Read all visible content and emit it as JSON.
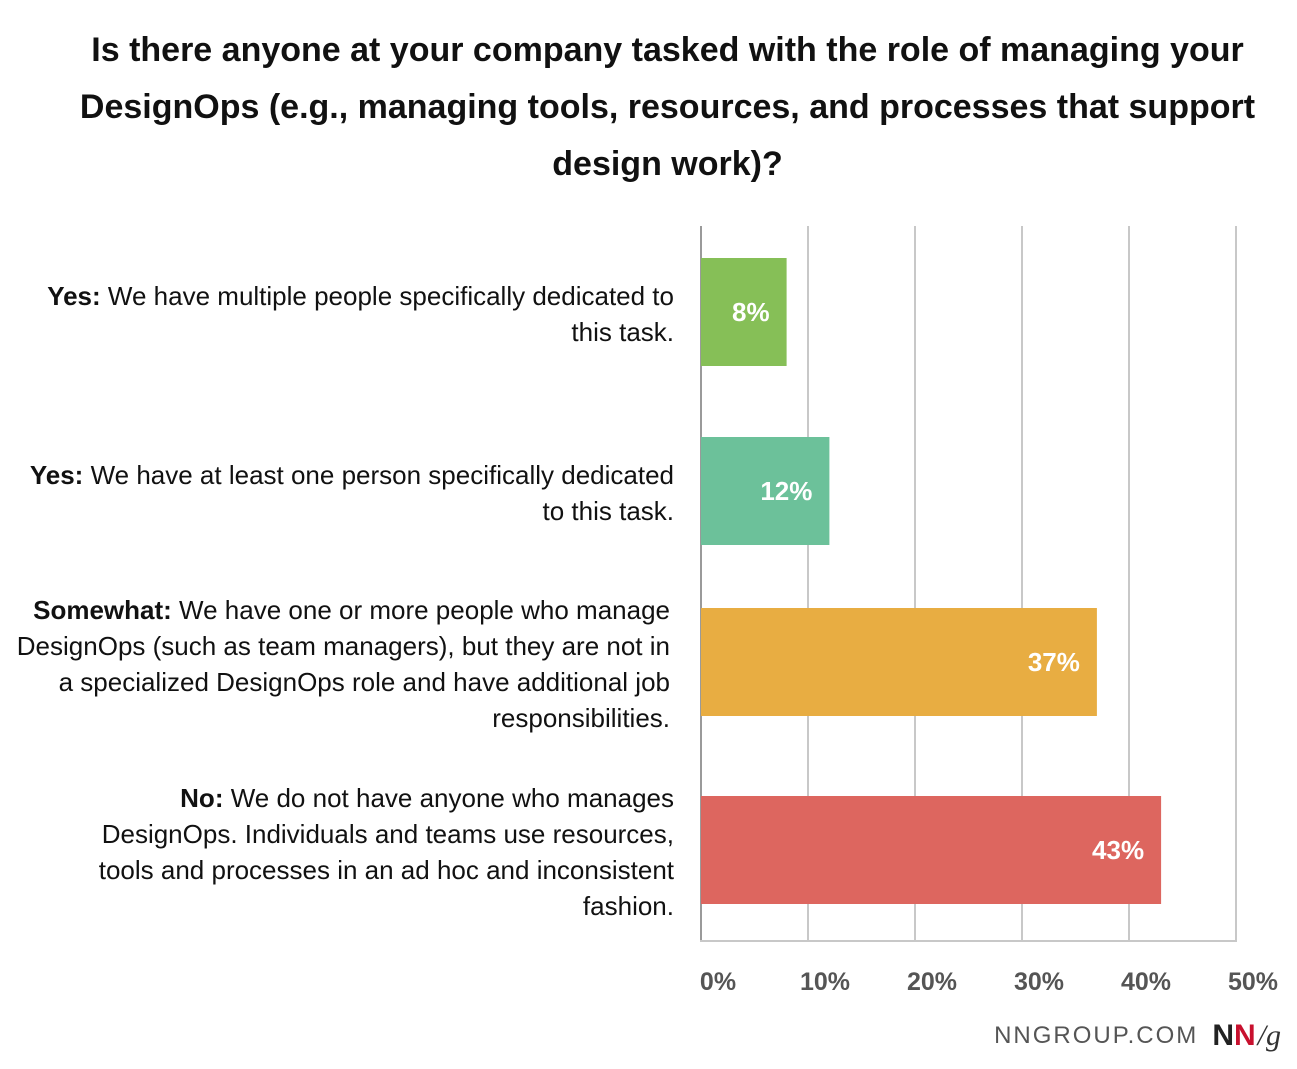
{
  "chart_data": {
    "type": "bar",
    "orientation": "horizontal",
    "title": "Is there anyone at your company tasked with the role of managing your DesignOps (e.g., managing tools, resources, and processes that support design work)?",
    "categories": [
      {
        "prefix": "Yes:",
        "text": "We have multiple people specifically dedicated to this task."
      },
      {
        "prefix": "Yes:",
        "text": "We have at least one person specifically dedicated to this task."
      },
      {
        "prefix": "Somewhat:",
        "text": "We have one or more people who manage DesignOps (such as team managers), but they are not in a specialized DesignOps role and have additional job responsibilities."
      },
      {
        "prefix": "No:",
        "text": "We do not have anyone who manages DesignOps. Individuals and teams use resources, tools and processes in an ad hoc and inconsistent fashion."
      }
    ],
    "values": [
      8,
      12,
      37,
      43
    ],
    "data_labels": [
      "8%",
      "12%",
      "37%",
      "43%"
    ],
    "colors": [
      "#86bf57",
      "#6cc19a",
      "#e8ad42",
      "#dd665f"
    ],
    "xlim": [
      0,
      50
    ],
    "x_ticks": [
      0,
      10,
      20,
      30,
      40,
      50
    ],
    "x_tick_labels": [
      "0%",
      "10%",
      "20%",
      "30%",
      "40%",
      "50%"
    ],
    "grid": "vertical",
    "legend": "none"
  },
  "footer": {
    "site": "NNGROUP.COM",
    "logo_n1": "N",
    "logo_n2": "N",
    "logo_g": "/g"
  }
}
